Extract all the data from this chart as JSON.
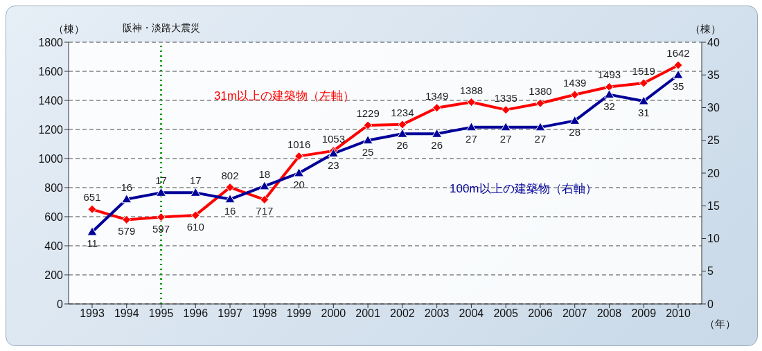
{
  "chart_data": {
    "type": "line",
    "categories": [
      "1993",
      "1994",
      "1995",
      "1996",
      "1997",
      "1998",
      "1999",
      "2000",
      "2001",
      "2002",
      "2003",
      "2004",
      "2005",
      "2006",
      "2007",
      "2008",
      "2009",
      "2010"
    ],
    "series": [
      {
        "name": "31m以上の建築物（左軸）",
        "color": "#ff0000",
        "marker": "diamond",
        "values": [
          651,
          579,
          597,
          610,
          802,
          717,
          1016,
          1053,
          1229,
          1234,
          1349,
          1388,
          1335,
          1380,
          1439,
          1493,
          1519,
          1642
        ]
      },
      {
        "name": "100m以上の建築物（右軸）",
        "color": "#000099",
        "marker": "triangle",
        "axis": "y2",
        "values": [
          11,
          16,
          17,
          17,
          16,
          18,
          20,
          23,
          25,
          26,
          26,
          27,
          27,
          27,
          28,
          32,
          31,
          35
        ]
      }
    ],
    "ylabel": "（棟）",
    "y2label": "（棟）",
    "xlabel": "（年）",
    "ylim": [
      0,
      1800
    ],
    "yticks": [
      0,
      200,
      400,
      600,
      800,
      1000,
      1200,
      1400,
      1600,
      1800
    ],
    "y2lim": [
      0,
      40
    ],
    "y2ticks": [
      0,
      5,
      10,
      15,
      20,
      25,
      30,
      35,
      40
    ],
    "grid": "y",
    "data_labels": true,
    "line_style": "solid",
    "ref_lines": [
      {
        "axis": "x",
        "value": "1995",
        "label": "阪神・淡路大震災",
        "color": "#009900",
        "line_style": "dotted"
      }
    ]
  }
}
